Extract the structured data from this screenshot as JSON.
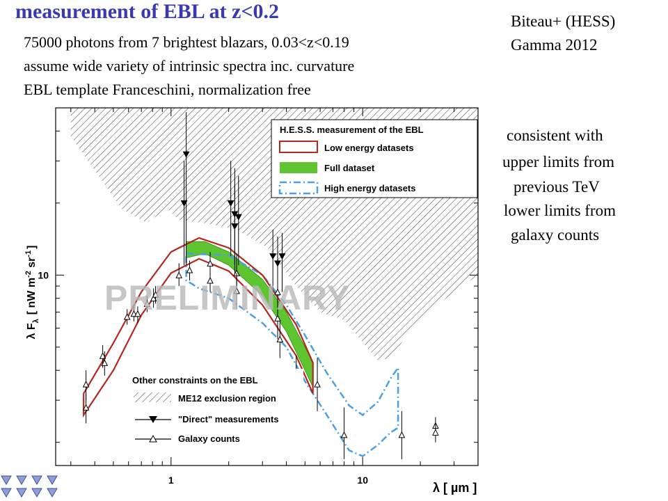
{
  "header": {
    "title": "measurement of EBL at z<0.2",
    "lines": [
      "75000 photons from 7 brightest blazars, 0.03<z<0.19",
      "assume wide variety of intrinsic spectra inc. curvature",
      "EBL template Franceschini, normalization free"
    ],
    "reference": [
      "Biteau+ (HESS)",
      "Gamma 2012"
    ]
  },
  "side_notes": [
    "consistent with",
    "upper limits from",
    "previous TeV",
    "lower limits from",
    "galaxy counts"
  ],
  "colors": {
    "title": "#3a3ab0",
    "low_energy": "#b5261e",
    "full": "#5ec42f",
    "high_energy": "#4a9fe6",
    "hatch": "#555555"
  },
  "chart_data": {
    "type": "scatter",
    "xlabel": "λ  [ µm ]",
    "ylabel": "λ F",
    "ylabel_sub": "λ",
    "ylabel_units": "[ nW m",
    "ylabel_units_sup1": "-2",
    "ylabel_units_mid": " sr",
    "ylabel_units_sup2": "-1",
    "ylabel_units_end": "]",
    "x_scale": "log",
    "y_scale": "log",
    "xlim": [
      0.25,
      40
    ],
    "ylim": [
      1.6,
      50
    ],
    "x_tick_labels": [
      {
        "value": 1,
        "label": "1"
      },
      {
        "value": 10,
        "label": "10"
      }
    ],
    "y_tick_labels": [
      {
        "value": 10,
        "label": "10"
      }
    ],
    "watermark": "PRELIMINARY",
    "legend_top": {
      "title": "H.E.S.S. measurement of the EBL",
      "entries": [
        "Low energy datasets",
        "Full dataset",
        "High energy datasets"
      ]
    },
    "legend_bottom": {
      "title": "Other constraints on the EBL",
      "entries": [
        "ME12 exclusion region",
        "\"Direct\" measurements",
        "Galaxy counts"
      ]
    },
    "exclusion_region_lower_boundary": [
      [
        0.3,
        38
      ],
      [
        0.55,
        19
      ],
      [
        0.75,
        16.5
      ],
      [
        0.95,
        19
      ],
      [
        1.1,
        17
      ],
      [
        1.5,
        16.5
      ],
      [
        2.2,
        15.5
      ],
      [
        3.2,
        13
      ],
      [
        4.5,
        9
      ],
      [
        6,
        7
      ],
      [
        8,
        6.5
      ],
      [
        12,
        4.4
      ],
      [
        14,
        4.5
      ],
      [
        17,
        5.6
      ],
      [
        25,
        7.6
      ],
      [
        40,
        10
      ]
    ],
    "series": [
      {
        "name": "Low energy datasets",
        "upper": [
          [
            0.35,
            3.2
          ],
          [
            0.5,
            5.2
          ],
          [
            0.7,
            8.5
          ],
          [
            1.0,
            12.5
          ],
          [
            1.4,
            14.3
          ],
          [
            2.0,
            13.0
          ],
          [
            3.0,
            10.0
          ],
          [
            4.5,
            6.2
          ],
          [
            5.5,
            4.3
          ]
        ],
        "lower": [
          [
            0.35,
            2.6
          ],
          [
            0.5,
            4.0
          ],
          [
            0.7,
            6.8
          ],
          [
            1.0,
            10.2
          ],
          [
            1.4,
            11.7
          ],
          [
            2.0,
            10.4
          ],
          [
            3.0,
            7.5
          ],
          [
            4.5,
            4.6
          ],
          [
            5.5,
            3.2
          ]
        ]
      },
      {
        "name": "Full dataset",
        "upper": [
          [
            1.2,
            13.8
          ],
          [
            1.5,
            13.8
          ],
          [
            2.0,
            12.5
          ],
          [
            3.0,
            9.6
          ],
          [
            4.0,
            7.0
          ],
          [
            5.0,
            5.0
          ],
          [
            5.5,
            4.3
          ]
        ],
        "lower": [
          [
            1.2,
            11.8
          ],
          [
            1.5,
            12.3
          ],
          [
            2.0,
            11.0
          ],
          [
            3.0,
            8.2
          ],
          [
            4.0,
            5.8
          ],
          [
            5.0,
            4.0
          ],
          [
            5.5,
            3.4
          ]
        ]
      },
      {
        "name": "High energy datasets",
        "upper": [
          [
            1.2,
            12.3
          ],
          [
            2.0,
            12.1
          ],
          [
            3.0,
            10.0
          ],
          [
            4.0,
            7.5
          ],
          [
            5.0,
            5.6
          ],
          [
            6.5,
            3.9
          ],
          [
            8.5,
            2.85
          ],
          [
            10,
            2.6
          ],
          [
            12,
            2.95
          ],
          [
            14,
            3.7
          ],
          [
            15.3,
            4.1
          ],
          [
            15.3,
            2.3
          ],
          [
            14,
            2.2
          ],
          [
            12,
            1.95
          ],
          [
            10,
            1.75
          ],
          [
            8.5,
            1.85
          ],
          [
            6.5,
            2.6
          ],
          [
            5.0,
            3.6
          ],
          [
            4.0,
            5.0
          ],
          [
            3.0,
            6.3
          ],
          [
            2.0,
            8.0
          ],
          [
            1.4,
            8.8
          ],
          [
            1.2,
            9.5
          ]
        ]
      },
      {
        "name": "\"Direct\" measurements",
        "points": [
          {
            "x": 1.2,
            "y": 32,
            "ylo": 11,
            "yhi": 48
          },
          {
            "x": 1.17,
            "y": 20,
            "ylo": 11,
            "yhi": 30
          },
          {
            "x": 2.05,
            "y": 20,
            "ylo": 12,
            "yhi": 30
          },
          {
            "x": 2.15,
            "y": 18,
            "ylo": 11,
            "yhi": 28
          },
          {
            "x": 2.25,
            "y": 17.5,
            "ylo": 11,
            "yhi": 26
          },
          {
            "x": 2.15,
            "y": 16,
            "ylo": 10,
            "yhi": 24
          },
          {
            "x": 3.4,
            "y": 12.0,
            "ylo": 8.5,
            "yhi": 15.5
          },
          {
            "x": 3.6,
            "y": 11.2,
            "ylo": 8.0,
            "yhi": 14.5
          },
          {
            "x": 3.8,
            "y": 12.0,
            "ylo": 8.5,
            "yhi": 15.0
          }
        ]
      },
      {
        "name": "Galaxy counts",
        "points": [
          {
            "x": 0.36,
            "y": 3.5,
            "ylo": 3.0,
            "yhi": 4.0
          },
          {
            "x": 0.36,
            "y": 2.8,
            "ylo": 2.4,
            "yhi": 3.2
          },
          {
            "x": 0.44,
            "y": 4.6,
            "ylo": 4.1,
            "yhi": 5.1
          },
          {
            "x": 0.45,
            "y": 4.3,
            "ylo": 3.8,
            "yhi": 4.8
          },
          {
            "x": 0.59,
            "y": 6.7,
            "ylo": 6.2,
            "yhi": 7.2
          },
          {
            "x": 0.64,
            "y": 6.9,
            "ylo": 6.4,
            "yhi": 7.5
          },
          {
            "x": 0.67,
            "y": 6.9,
            "ylo": 6.3,
            "yhi": 7.4
          },
          {
            "x": 0.75,
            "y": 7.6,
            "ylo": 7.0,
            "yhi": 8.2
          },
          {
            "x": 0.81,
            "y": 8.0,
            "ylo": 7.3,
            "yhi": 8.8
          },
          {
            "x": 0.83,
            "y": 8.3,
            "ylo": 7.6,
            "yhi": 9.0
          },
          {
            "x": 1.1,
            "y": 10.0,
            "ylo": 9.0,
            "yhi": 11.2
          },
          {
            "x": 1.25,
            "y": 10.5,
            "ylo": 9.5,
            "yhi": 11.5
          },
          {
            "x": 1.6,
            "y": 11.2,
            "ylo": 10.0,
            "yhi": 12.5
          },
          {
            "x": 1.6,
            "y": 9.5,
            "ylo": 8.5,
            "yhi": 10.7
          },
          {
            "x": 2.2,
            "y": 10.2,
            "ylo": 8.5,
            "yhi": 12.3
          },
          {
            "x": 2.2,
            "y": 8.6,
            "ylo": 7.2,
            "yhi": 10.2
          },
          {
            "x": 3.6,
            "y": 8.5,
            "ylo": 7.0,
            "yhi": 10.5
          },
          {
            "x": 3.6,
            "y": 6.6,
            "ylo": 5.4,
            "yhi": 8.0
          },
          {
            "x": 3.7,
            "y": 5.4,
            "ylo": 4.5,
            "yhi": 6.5
          },
          {
            "x": 4.5,
            "y": 3.5,
            "ylo": 2.6,
            "yhi": 4.6
          },
          {
            "x": 5.8,
            "y": 3.5,
            "ylo": 2.7,
            "yhi": 4.5
          },
          {
            "x": 8.0,
            "y": 2.15,
            "ylo": 1.7,
            "yhi": 2.8
          },
          {
            "x": 16.0,
            "y": 2.15,
            "ylo": 1.7,
            "yhi": 2.7
          },
          {
            "x": 24.0,
            "y": 2.35,
            "ylo": 2.15,
            "yhi": 2.55
          },
          {
            "x": 24.0,
            "y": 2.2,
            "ylo": 2.0,
            "yhi": 2.4
          }
        ]
      }
    ]
  }
}
